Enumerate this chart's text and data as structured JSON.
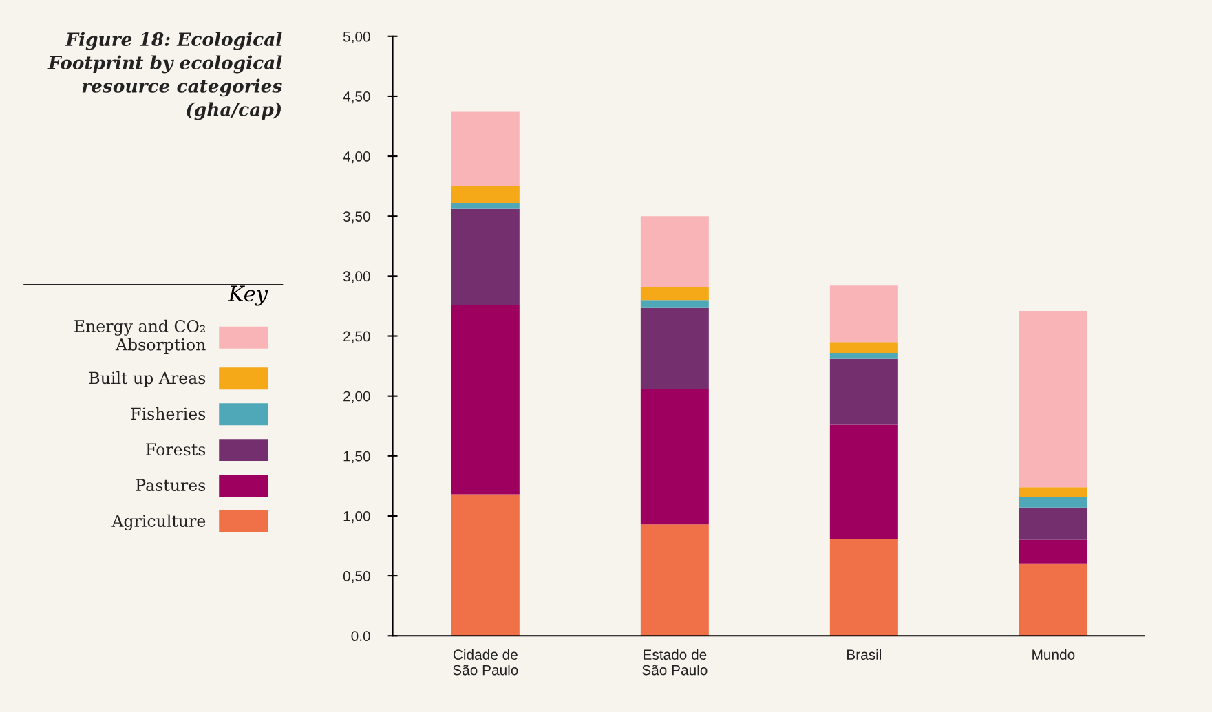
{
  "chart_data": {
    "type": "bar",
    "stacked": true,
    "title": "Figure 18: Ecological Footprint by ecological resource categories (gha/cap)",
    "legend_title": "Key",
    "legend": "left",
    "categories": [
      "Cidade de\nSão Paulo",
      "Estado de\nSão Paulo",
      "Brasil",
      "Mundo"
    ],
    "series": [
      {
        "name": "Agriculture",
        "color": "#f07048",
        "values": [
          1.18,
          0.93,
          0.81,
          0.6
        ]
      },
      {
        "name": "Pastures",
        "color": "#9e0060",
        "values": [
          1.58,
          1.13,
          0.95,
          0.2
        ]
      },
      {
        "name": "Forests",
        "color": "#74306e",
        "values": [
          0.8,
          0.68,
          0.55,
          0.27
        ]
      },
      {
        "name": "Fisheries",
        "color": "#4fa8b8",
        "values": [
          0.05,
          0.06,
          0.05,
          0.09
        ]
      },
      {
        "name": "Built up Areas",
        "color": "#f5a818",
        "values": [
          0.14,
          0.11,
          0.09,
          0.08
        ]
      },
      {
        "name": "Energy and CO₂\nAbsorption",
        "color": "#f9b4b8",
        "values": [
          0.62,
          0.59,
          0.47,
          1.47
        ]
      }
    ],
    "ylim": [
      0,
      5
    ],
    "yticks": [
      {
        "value": 0,
        "label": "0.0"
      },
      {
        "value": 0.5,
        "label": "0,50"
      },
      {
        "value": 1,
        "label": "1,00"
      },
      {
        "value": 1.5,
        "label": "1,50"
      },
      {
        "value": 2,
        "label": "2,00"
      },
      {
        "value": 2.5,
        "label": "2,50"
      },
      {
        "value": 3,
        "label": "3,00"
      },
      {
        "value": 3.5,
        "label": "3,50"
      },
      {
        "value": 4,
        "label": "4,00"
      },
      {
        "value": 4.5,
        "label": "4,50"
      },
      {
        "value": 5,
        "label": "5,00"
      }
    ],
    "grid": false
  }
}
